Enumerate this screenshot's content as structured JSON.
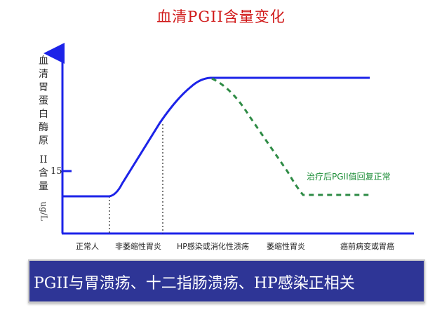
{
  "slide": {
    "title": "血清PGII含量变化",
    "banner_text": "PGII与胃溃疡、十二指肠溃疡、HP感染正相关"
  },
  "diagram": {
    "y_axis_label_chars": [
      "血",
      "清",
      "胃",
      "蛋",
      "白",
      "酶",
      "原",
      "II",
      "含",
      "量",
      "ug/L"
    ],
    "y_tick": "15",
    "stages": [
      "正常人",
      "非萎缩性胃炎",
      "HP感染或消化性溃疡",
      "萎缩性胃炎",
      "癌前病变或胃癌"
    ],
    "annotation": "治疗后PGII值回复正常",
    "colors": {
      "main_curve": "#1c23e8",
      "treated_curve": "#2e8b45",
      "title": "#d01818",
      "banner": "#2e3596"
    }
  }
}
